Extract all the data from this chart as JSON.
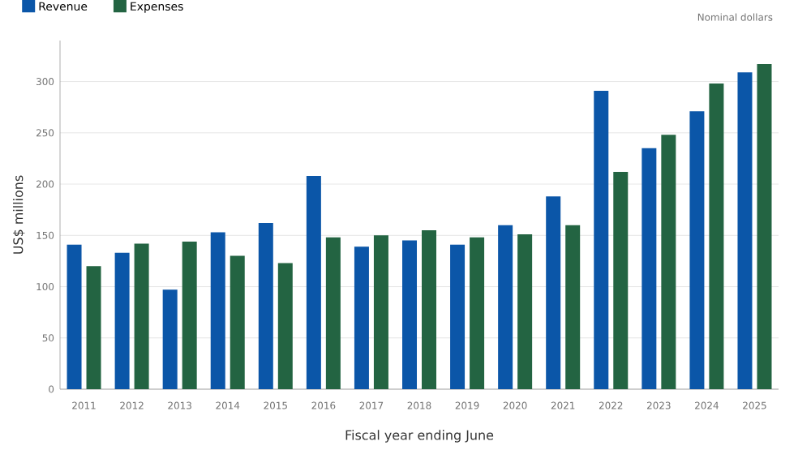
{
  "chart_data": {
    "type": "bar",
    "xlabel": "Fiscal year ending June",
    "ylabel": "US$ millions",
    "annotations": [
      "Nominal dollars"
    ],
    "categories": [
      "2011",
      "2012",
      "2013",
      "2014",
      "2015",
      "2016",
      "2017",
      "2018",
      "2019",
      "2020",
      "2021",
      "2022",
      "2023",
      "2024",
      "2025"
    ],
    "series": [
      {
        "name": "Revenue",
        "color": "#0b56a8",
        "values": [
          141,
          133,
          97,
          153,
          162,
          208,
          139,
          145,
          141,
          160,
          188,
          291,
          235,
          271,
          309
        ]
      },
      {
        "name": "Expenses",
        "color": "#236442",
        "values": [
          120,
          142,
          144,
          130,
          123,
          148,
          150,
          155,
          148,
          151,
          160,
          212,
          248,
          298,
          317
        ]
      }
    ],
    "ylim": [
      0,
      340
    ],
    "yticks": [
      0,
      50,
      100,
      150,
      200,
      250,
      300
    ],
    "grid": "y",
    "legend": "top left"
  }
}
